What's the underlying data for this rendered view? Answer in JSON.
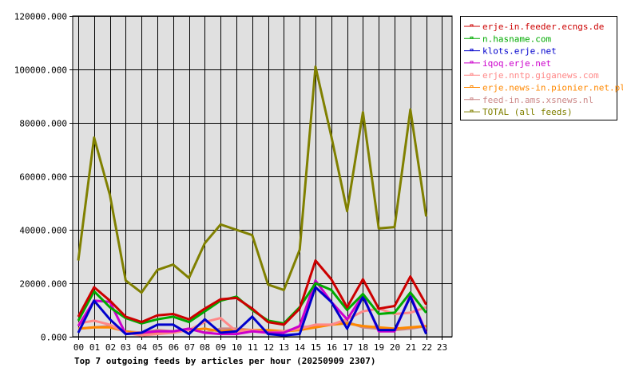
{
  "chart_data": {
    "type": "line",
    "title": "Top 7 outgoing feeds by articles per hour (20250909 2307)",
    "xlabel": "",
    "ylabel": "",
    "ylim": [
      0,
      120000
    ],
    "y_ticks": [
      "0.000",
      "20000.000",
      "40000.000",
      "60000.000",
      "80000.000",
      "100000.000",
      "120000.000"
    ],
    "y_tick_values": [
      0,
      20000,
      40000,
      60000,
      80000,
      100000,
      120000
    ],
    "categories": [
      "00",
      "01",
      "02",
      "03",
      "04",
      "05",
      "06",
      "07",
      "08",
      "09",
      "10",
      "11",
      "12",
      "13",
      "14",
      "15",
      "16",
      "17",
      "18",
      "19",
      "20",
      "21",
      "22",
      "23"
    ],
    "grid": true,
    "legend_position": "right",
    "plot_background": "#e0e0e0",
    "series": [
      {
        "name": "erje-in.feeder.ecngs.de",
        "color": "#cc0000",
        "values": [
          7500,
          18500,
          13500,
          7500,
          5500,
          8000,
          8500,
          6500,
          10500,
          14000,
          14500,
          10500,
          5500,
          4500,
          10500,
          28500,
          21500,
          11000,
          21500,
          10500,
          11500,
          22500,
          12000
        ]
      },
      {
        "name": "n.hasname.com",
        "color": "#00aa00",
        "values": [
          6000,
          17000,
          11000,
          7000,
          5000,
          6500,
          7500,
          5500,
          9500,
          13500,
          15000,
          10000,
          6000,
          5000,
          11000,
          20000,
          17500,
          10000,
          16000,
          8500,
          9000,
          16500,
          9000
        ]
      },
      {
        "name": "klots.erje.net",
        "color": "#0000cc",
        "values": [
          1500,
          13500,
          6500,
          1000,
          1500,
          4500,
          4500,
          1000,
          6500,
          1500,
          2000,
          7500,
          1000,
          500,
          1000,
          18500,
          13000,
          3000,
          15000,
          2500,
          2500,
          15000,
          1000
        ]
      },
      {
        "name": "iqoq.erje.net",
        "color": "#cc00cc",
        "values": [
          4000,
          13500,
          13000,
          1000,
          1500,
          2000,
          2000,
          3000,
          1500,
          1000,
          1000,
          2000,
          1500,
          1500,
          4000,
          21000,
          13000,
          6500,
          15500,
          2000,
          2000,
          15500,
          1500
        ]
      },
      {
        "name": "erje.nntp.giganews.com",
        "color": "#ff8888",
        "values": [
          5000,
          6000,
          4500,
          1500,
          500,
          1000,
          1500,
          2500,
          5500,
          7000,
          2000,
          2500,
          1500,
          2000,
          3000,
          4500,
          4500,
          6500,
          9500,
          10500,
          8500,
          9000,
          11000
        ]
      },
      {
        "name": "erje.news-in.pionier.net.pl",
        "color": "#ff8800",
        "values": [
          3000,
          3500,
          3500,
          2000,
          1000,
          1500,
          2000,
          2500,
          3000,
          2000,
          2500,
          2500,
          2500,
          2000,
          2500,
          3500,
          4500,
          5000,
          4000,
          3500,
          3000,
          3500,
          4000
        ]
      },
      {
        "name": "feed-in.ams.xsnews.nl",
        "color": "#cc8888",
        "values": [
          3000,
          3500,
          4000,
          2000,
          1500,
          2500,
          2000,
          3000,
          1500,
          3000,
          3000,
          2500,
          1500,
          2000,
          3500,
          4000,
          4500,
          5500,
          3500,
          3000,
          2500,
          3000,
          4000
        ]
      },
      {
        "name": "TOTAL (all feeds)",
        "color": "#808000",
        "values": [
          28500,
          74500,
          53000,
          21000,
          16500,
          25000,
          27000,
          22000,
          35000,
          42000,
          40000,
          38000,
          19500,
          17500,
          32500,
          101000,
          75000,
          47000,
          84000,
          40500,
          41000,
          85000,
          45000
        ]
      }
    ]
  },
  "legend": {
    "items": [
      {
        "label": "erje-in.feeder.ecngs.de",
        "color": "#cc0000"
      },
      {
        "label": "n.hasname.com",
        "color": "#00aa00"
      },
      {
        "label": "klots.erje.net",
        "color": "#0000cc"
      },
      {
        "label": "iqoq.erje.net",
        "color": "#cc00cc"
      },
      {
        "label": "erje.nntp.giganews.com",
        "color": "#ff8888"
      },
      {
        "label": "erje.news-in.pionier.net.pl",
        "color": "#ff8800"
      },
      {
        "label": "feed-in.ams.xsnews.nl",
        "color": "#cc8888"
      },
      {
        "label": "TOTAL (all feeds)",
        "color": "#808000"
      }
    ]
  }
}
